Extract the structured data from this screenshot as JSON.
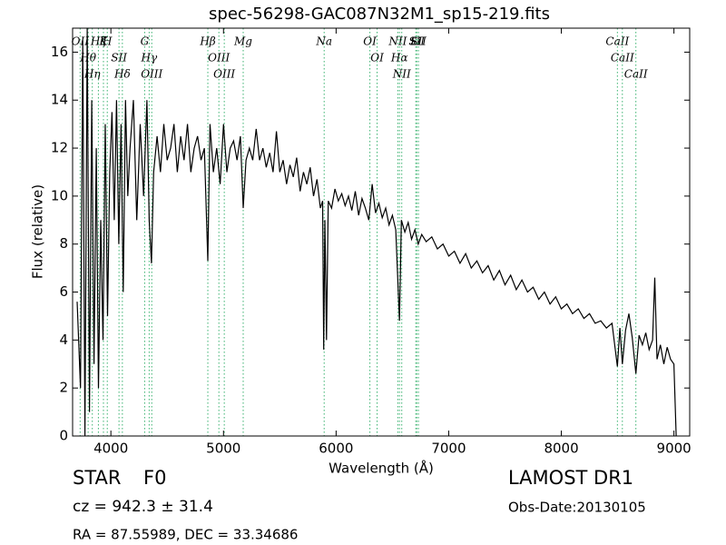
{
  "chart_data": {
    "type": "line",
    "title": "spec-56298-GAC087N32M1_sp15-219.fits",
    "x_label": "Wavelength (Å)",
    "y_label": "Flux (relative)",
    "xlim": [
      3660,
      9140
    ],
    "ylim": [
      0,
      17
    ],
    "xticks": [
      4000,
      5000,
      6000,
      7000,
      8000,
      9000
    ],
    "yticks": [
      0,
      2,
      4,
      6,
      8,
      10,
      12,
      14,
      16
    ],
    "color": "#000000",
    "annotation_color": "#3cb371",
    "x": [
      3700,
      3730,
      3750,
      3770,
      3790,
      3810,
      3830,
      3850,
      3870,
      3890,
      3910,
      3930,
      3950,
      3970,
      3990,
      4010,
      4030,
      4050,
      4070,
      4090,
      4110,
      4130,
      4150,
      4170,
      4200,
      4230,
      4260,
      4290,
      4320,
      4340,
      4360,
      4380,
      4410,
      4440,
      4470,
      4500,
      4530,
      4560,
      4590,
      4620,
      4650,
      4680,
      4710,
      4740,
      4770,
      4800,
      4830,
      4861,
      4880,
      4910,
      4940,
      4970,
      5000,
      5030,
      5060,
      5090,
      5120,
      5150,
      5175,
      5200,
      5230,
      5260,
      5290,
      5320,
      5350,
      5380,
      5410,
      5440,
      5470,
      5500,
      5530,
      5560,
      5590,
      5620,
      5650,
      5680,
      5710,
      5740,
      5770,
      5800,
      5830,
      5860,
      5880,
      5890,
      5900,
      5915,
      5930,
      5960,
      5990,
      6020,
      6050,
      6080,
      6110,
      6140,
      6170,
      6200,
      6230,
      6260,
      6290,
      6320,
      6350,
      6380,
      6410,
      6440,
      6470,
      6500,
      6530,
      6563,
      6580,
      6610,
      6640,
      6670,
      6700,
      6730,
      6760,
      6800,
      6850,
      6900,
      6950,
      7000,
      7050,
      7100,
      7150,
      7200,
      7250,
      7300,
      7350,
      7400,
      7450,
      7500,
      7550,
      7600,
      7650,
      7700,
      7750,
      7800,
      7850,
      7900,
      7950,
      8000,
      8050,
      8100,
      8150,
      8200,
      8250,
      8300,
      8350,
      8400,
      8450,
      8498,
      8520,
      8542,
      8570,
      8600,
      8630,
      8662,
      8690,
      8720,
      8750,
      8780,
      8810,
      8830,
      8850,
      8880,
      8910,
      8940,
      8970,
      9000,
      9020
    ],
    "values": [
      5.6,
      2.0,
      16.5,
      0,
      17,
      1,
      14,
      3,
      12,
      2,
      9,
      4,
      13,
      5,
      11,
      13.5,
      9,
      14,
      8,
      13,
      6,
      14,
      10,
      12,
      14,
      9,
      13,
      10,
      14,
      9,
      7.2,
      11,
      12.5,
      11,
      13,
      11.5,
      12,
      13,
      11,
      12.5,
      11.5,
      13,
      11,
      12,
      12.5,
      11.5,
      12,
      7.3,
      13,
      11,
      12,
      10.5,
      13,
      11,
      12,
      12.3,
      11.5,
      12.5,
      9.5,
      11.5,
      12,
      11.5,
      12.8,
      11.5,
      12,
      11.2,
      11.8,
      11,
      12.7,
      11,
      11.5,
      10.5,
      11.3,
      10.8,
      11.6,
      10.2,
      11,
      10.5,
      11.2,
      10,
      10.7,
      9.5,
      9.8,
      3.6,
      9,
      4,
      9.8,
      9.5,
      10.3,
      9.8,
      10.1,
      9.6,
      10,
      9.4,
      10.2,
      9.2,
      9.9,
      9.5,
      9,
      10.5,
      9.3,
      9.7,
      9.1,
      9.5,
      8.8,
      9.2,
      8.6,
      4.8,
      9,
      8.5,
      8.9,
      8.2,
      8.6,
      8,
      8.4,
      8.1,
      8.3,
      7.8,
      8,
      7.5,
      7.7,
      7.2,
      7.6,
      7,
      7.3,
      6.8,
      7.1,
      6.5,
      6.9,
      6.3,
      6.7,
      6.1,
      6.5,
      6,
      6.2,
      5.7,
      6,
      5.5,
      5.8,
      5.3,
      5.5,
      5.1,
      5.3,
      4.9,
      5.1,
      4.7,
      4.8,
      4.5,
      4.7,
      2.9,
      4.5,
      3.0,
      4.4,
      5.1,
      4.1,
      2.6,
      4.2,
      3.8,
      4.3,
      3.6,
      4.0,
      6.6,
      3.2,
      3.8,
      3.0,
      3.7,
      3.2,
      3.0,
      0.0
    ],
    "annotations": [
      {
        "label": "OII",
        "x": 3727
      },
      {
        "label": "Hθ",
        "x": 3798
      },
      {
        "label": "Hη",
        "x": 3835
      },
      {
        "label": "Hζ",
        "x": 3889
      },
      {
        "label": "K",
        "x": 3934
      },
      {
        "label": "H",
        "x": 3968
      },
      {
        "label": "SII",
        "x": 4072
      },
      {
        "label": "Hδ",
        "x": 4102
      },
      {
        "label": "G",
        "x": 4300
      },
      {
        "label": "Hγ",
        "x": 4340
      },
      {
        "label": "OIII",
        "x": 4363
      },
      {
        "label": "Hβ",
        "x": 4861
      },
      {
        "label": "OIII",
        "x": 4959
      },
      {
        "label": "OIII",
        "x": 5007
      },
      {
        "label": "Mg",
        "x": 5175
      },
      {
        "label": "Na",
        "x": 5894
      },
      {
        "label": "OI",
        "x": 6300
      },
      {
        "label": "OI",
        "x": 6364
      },
      {
        "label": "NII",
        "x": 6548
      },
      {
        "label": "Hα",
        "x": 6563
      },
      {
        "label": "NII",
        "x": 6583
      },
      {
        "label": "Li",
        "x": 6708
      },
      {
        "label": "SII",
        "x": 6716
      },
      {
        "label": "SII",
        "x": 6731
      },
      {
        "label": "CaII",
        "x": 8498
      },
      {
        "label": "CaII",
        "x": 8542
      },
      {
        "label": "CaII",
        "x": 8662
      }
    ]
  },
  "info": {
    "class": "STAR",
    "subclass": "F0",
    "cz": "cz = 942.3 ± 31.4",
    "coords": "RA = 87.55989, DEC = 33.34686",
    "survey": "LAMOST DR1",
    "obs_date": "Obs-Date:20130105"
  }
}
